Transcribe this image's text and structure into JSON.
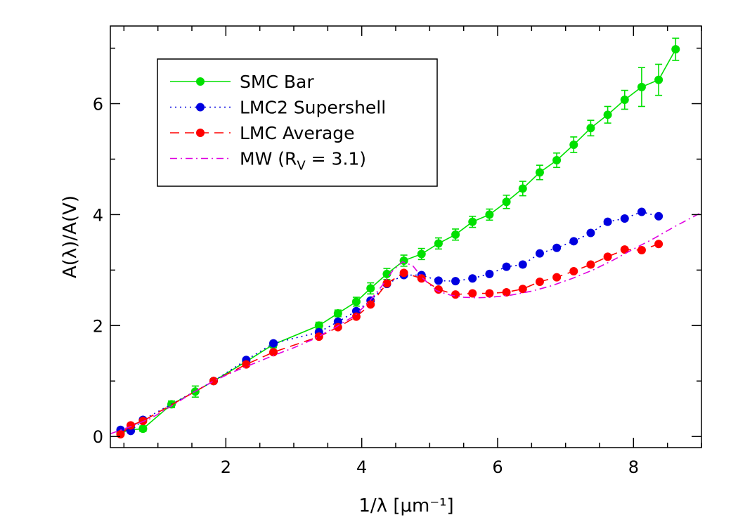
{
  "chart_data": {
    "type": "line",
    "xlabel": "1/λ [μm⁻¹]",
    "ylabel": "A(λ)/A(V)",
    "xlim": [
      0.3,
      9.0
    ],
    "ylim": [
      -0.2,
      7.4
    ],
    "xticks": [
      2,
      4,
      6,
      8
    ],
    "yticks": [
      0,
      2,
      4,
      6
    ],
    "grid": false,
    "legend_position": "top-left",
    "series": [
      {
        "name": "SMC Bar",
        "color": "#00e000",
        "line_style": "solid",
        "marker": "filled-circle",
        "x": [
          0.45,
          0.6,
          0.78,
          1.2,
          1.55,
          1.82,
          2.3,
          2.7,
          3.37,
          3.65,
          3.92,
          4.13,
          4.37,
          4.62,
          4.88,
          5.13,
          5.38,
          5.63,
          5.88,
          6.13,
          6.37,
          6.62,
          6.87,
          7.12,
          7.37,
          7.62,
          7.87,
          8.12,
          8.37,
          8.62
        ],
        "y": [
          0.07,
          0.12,
          0.14,
          0.58,
          0.81,
          1.0,
          1.35,
          1.66,
          2.0,
          2.22,
          2.43,
          2.67,
          2.93,
          3.17,
          3.29,
          3.48,
          3.64,
          3.87,
          4.0,
          4.23,
          4.47,
          4.76,
          4.98,
          5.26,
          5.56,
          5.8,
          6.07,
          6.3,
          6.43,
          6.98
        ],
        "yerr": [
          0.05,
          0.05,
          0.05,
          0.06,
          0.1,
          0.04,
          0.06,
          0.06,
          0.06,
          0.06,
          0.08,
          0.1,
          0.1,
          0.1,
          0.1,
          0.1,
          0.1,
          0.1,
          0.1,
          0.12,
          0.13,
          0.13,
          0.13,
          0.14,
          0.14,
          0.15,
          0.17,
          0.35,
          0.28,
          0.2
        ]
      },
      {
        "name": "LMC2 Supershell",
        "color": "#0000e0",
        "line_style": "dotted",
        "marker": "filled-circle",
        "x": [
          0.45,
          0.6,
          0.78,
          1.82,
          2.3,
          2.7,
          3.37,
          3.65,
          3.92,
          4.13,
          4.37,
          4.62,
          4.88,
          5.13,
          5.38,
          5.63,
          5.88,
          6.13,
          6.37,
          6.62,
          6.87,
          7.12,
          7.37,
          7.62,
          7.87,
          8.12,
          8.37
        ],
        "y": [
          0.12,
          0.1,
          0.3,
          1.0,
          1.38,
          1.68,
          1.88,
          2.07,
          2.26,
          2.45,
          2.75,
          2.91,
          2.91,
          2.81,
          2.8,
          2.85,
          2.93,
          3.06,
          3.1,
          3.3,
          3.4,
          3.52,
          3.67,
          3.87,
          3.93,
          4.05,
          3.97
        ]
      },
      {
        "name": "LMC Average",
        "color": "#ff0000",
        "line_style": "dashed",
        "marker": "filled-circle",
        "x": [
          0.45,
          0.6,
          0.78,
          1.82,
          2.3,
          2.7,
          3.37,
          3.65,
          3.92,
          4.13,
          4.37,
          4.62,
          4.88,
          5.13,
          5.38,
          5.63,
          5.88,
          6.13,
          6.37,
          6.62,
          6.87,
          7.12,
          7.37,
          7.62,
          7.87,
          8.12,
          8.37
        ],
        "y": [
          0.04,
          0.2,
          0.28,
          1.0,
          1.3,
          1.52,
          1.8,
          1.97,
          2.16,
          2.38,
          2.76,
          2.95,
          2.85,
          2.65,
          2.56,
          2.58,
          2.58,
          2.6,
          2.66,
          2.79,
          2.87,
          2.98,
          3.1,
          3.24,
          3.37,
          3.36,
          3.47
        ]
      },
      {
        "name": "MW (R_V = 3.1)",
        "color": "#e000e0",
        "line_style": "dashdot",
        "marker": "none",
        "x": [
          0.3,
          0.6,
          0.9,
          1.2,
          1.5,
          1.82,
          2.1,
          2.4,
          2.7,
          3.0,
          3.3,
          3.6,
          3.9,
          4.1,
          4.3,
          4.45,
          4.6,
          4.75,
          4.9,
          5.1,
          5.3,
          5.5,
          5.7,
          5.9,
          6.2,
          6.5,
          6.8,
          7.1,
          7.4,
          7.7,
          8.0,
          8.3,
          8.6,
          9.0
        ],
        "y": [
          0.05,
          0.18,
          0.33,
          0.55,
          0.78,
          1.0,
          1.16,
          1.31,
          1.46,
          1.6,
          1.76,
          1.96,
          2.18,
          2.42,
          2.72,
          2.98,
          3.15,
          3.08,
          2.85,
          2.63,
          2.55,
          2.51,
          2.5,
          2.51,
          2.55,
          2.62,
          2.72,
          2.85,
          3.0,
          3.18,
          3.38,
          3.57,
          3.78,
          4.04
        ]
      }
    ]
  },
  "legend": {
    "items": [
      {
        "label": "SMC Bar",
        "color": "#00e000",
        "line_style": "solid",
        "marker": "filled-circle"
      },
      {
        "label": "LMC2 Supershell",
        "color": "#0000e0",
        "line_style": "dotted",
        "marker": "filled-circle"
      },
      {
        "label": "LMC Average",
        "color": "#ff0000",
        "line_style": "dashed",
        "marker": "filled-circle"
      },
      {
        "label": "MW (R",
        "sub": "V",
        "suffix": " = 3.1)",
        "color": "#e000e0",
        "line_style": "dashdot",
        "marker": "none"
      }
    ]
  }
}
